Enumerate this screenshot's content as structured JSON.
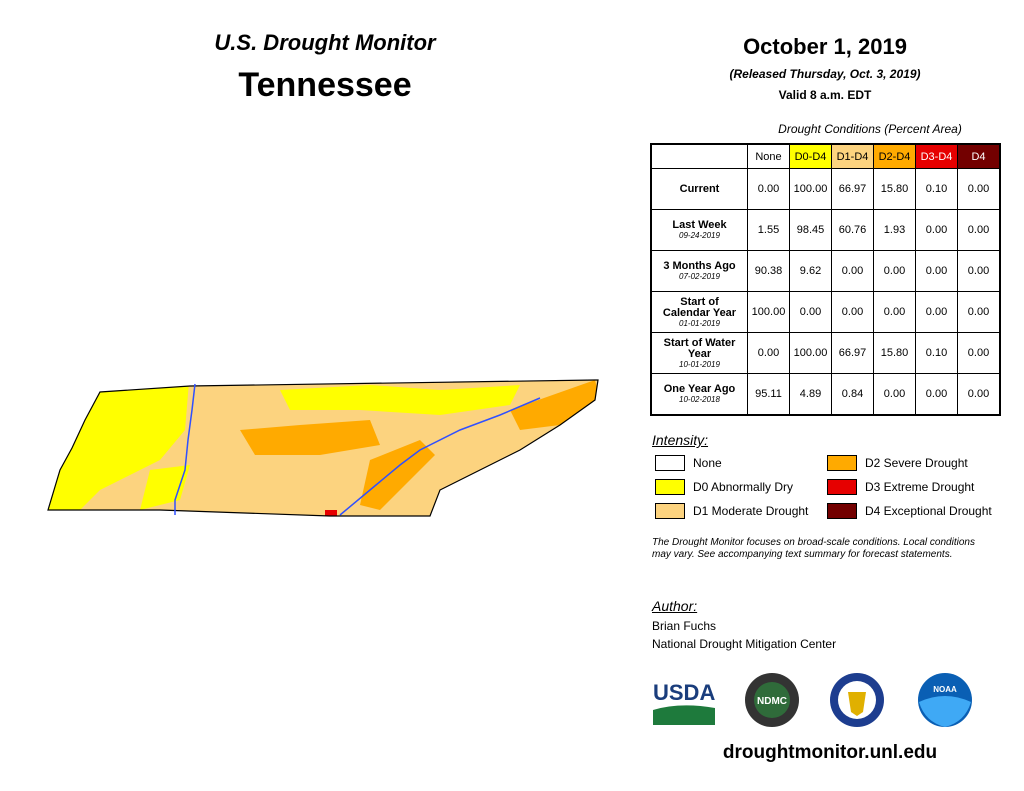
{
  "header": {
    "title": "U.S. Drought Monitor",
    "state": "Tennessee"
  },
  "date": {
    "date": "October 1, 2019",
    "released": "(Released Thursday, Oct. 3, 2019)",
    "valid": "Valid 8 a.m. EDT"
  },
  "table": {
    "caption": "Drought Conditions (Percent Area)",
    "columns": [
      "None",
      "D0-D4",
      "D1-D4",
      "D2-D4",
      "D3-D4",
      "D4"
    ],
    "rows": [
      {
        "label": "Current",
        "values": [
          "0.00",
          "100.00",
          "66.97",
          "15.80",
          "0.10",
          "0.00"
        ]
      },
      {
        "label": "Last Week",
        "date": "09-24-2019",
        "values": [
          "1.55",
          "98.45",
          "60.76",
          "1.93",
          "0.00",
          "0.00"
        ]
      },
      {
        "label": "3 Months Ago",
        "date": "07-02-2019",
        "values": [
          "90.38",
          "9.62",
          "0.00",
          "0.00",
          "0.00",
          "0.00"
        ]
      },
      {
        "label": "Start of Calendar Year",
        "date": "01-01-2019",
        "values": [
          "100.00",
          "0.00",
          "0.00",
          "0.00",
          "0.00",
          "0.00"
        ]
      },
      {
        "label": "Start of Water Year",
        "date": "10-01-2019",
        "values": [
          "0.00",
          "100.00",
          "66.97",
          "15.80",
          "0.10",
          "0.00"
        ]
      },
      {
        "label": "One Year Ago",
        "date": "10-02-2018",
        "values": [
          "95.11",
          "4.89",
          "0.84",
          "0.00",
          "0.00",
          "0.00"
        ]
      }
    ]
  },
  "legend": {
    "title": "Intensity:",
    "items": [
      "None",
      "D0 Abnormally Dry",
      "D1 Moderate Drought",
      "D2 Severe Drought",
      "D3 Extreme Drought",
      "D4 Exceptional Drought"
    ]
  },
  "note": "The Drought Monitor focuses on broad-scale conditions. Local conditions may vary. See accompanying text summary for forecast statements.",
  "author": {
    "title": "Author:",
    "name": "Brian Fuchs",
    "org": "National Drought Mitigation Center"
  },
  "logos": [
    "USDA",
    "NDMC",
    "NOAA"
  ],
  "url": "droughtmonitor.unl.edu"
}
